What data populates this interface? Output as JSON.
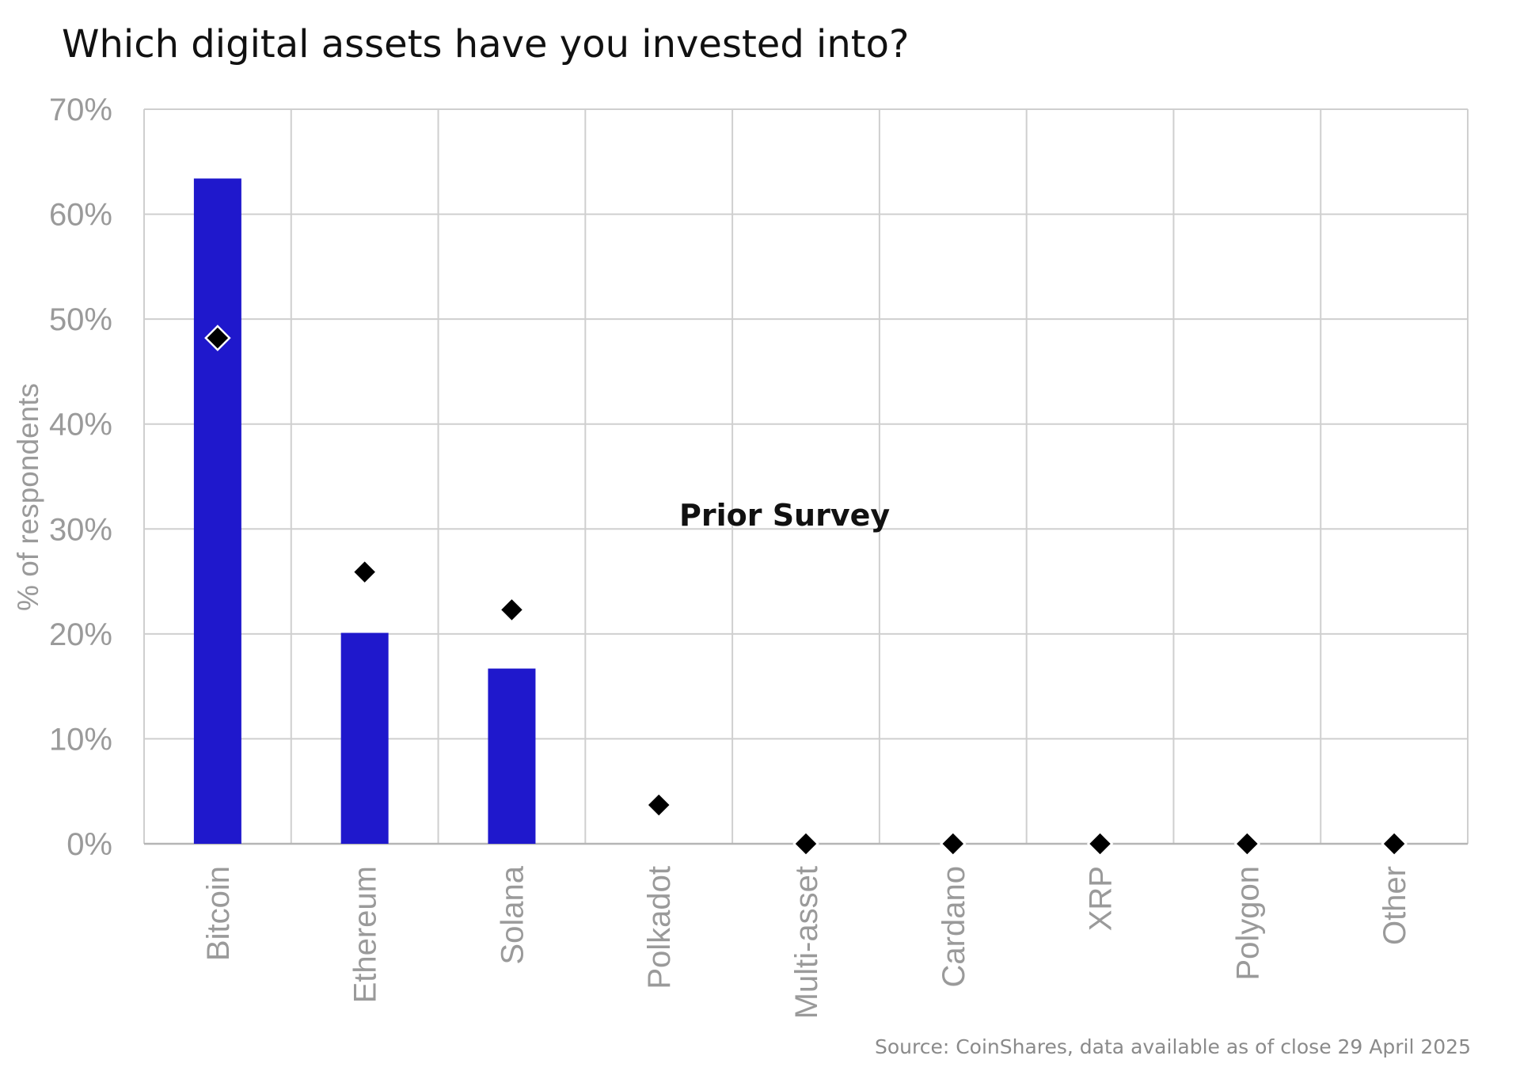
{
  "chart_data": {
    "type": "bar",
    "title": "Which digital assets have you invested into?",
    "ylabel": "% of respondents",
    "xlabel": "",
    "ylim": [
      0,
      70
    ],
    "y_ticks": [
      "0%",
      "10%",
      "20%",
      "30%",
      "40%",
      "50%",
      "60%",
      "70%"
    ],
    "y_tick_values": [
      0,
      10,
      20,
      30,
      40,
      50,
      60,
      70
    ],
    "categories": [
      "Bitcoin",
      "Ethereum",
      "Solana",
      "Polkadot",
      "Multi-asset",
      "Cardano",
      "XRP",
      "Polygon",
      "Other"
    ],
    "series": [
      {
        "type": "bar",
        "values": [
          63.4,
          20.1,
          16.7,
          0,
          0,
          0,
          0,
          0,
          0
        ],
        "color": "#1f18cc"
      },
      {
        "name": "Prior Survey",
        "type": "marker",
        "marker": "diamond",
        "values": [
          48.2,
          25.9,
          22.3,
          3.7,
          0,
          0,
          0,
          0,
          0
        ],
        "color": "#000000"
      }
    ],
    "annotations": [
      {
        "text": "Prior Survey"
      }
    ],
    "grid": true,
    "source": "Source: CoinShares, data available as of close 29 April 2025"
  }
}
